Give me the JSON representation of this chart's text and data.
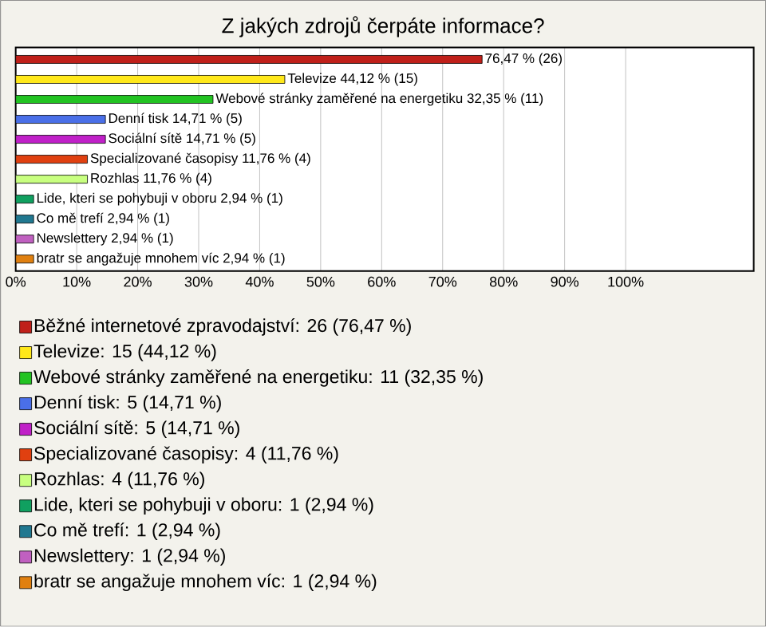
{
  "chart_data": {
    "type": "bar",
    "orientation": "horizontal",
    "title": "Z jakých zdrojů čerpáte informace?",
    "categories": [
      null,
      null,
      null,
      null,
      null,
      null,
      null,
      null,
      null,
      null,
      null
    ],
    "series": [
      {
        "name": "Běžné internetové zpravodajství: 26 (76,47 %)",
        "color": "#c0201a",
        "values": [
          76.47,
          null,
          null,
          null,
          null,
          null,
          null,
          null,
          null,
          null,
          null
        ],
        "value_labels": [
          "76,47 % (26)",
          null,
          null,
          null,
          null,
          null,
          null,
          null,
          null,
          null,
          null
        ]
      },
      {
        "name": "Televize: 15 (44,12 %)",
        "color": "#ffe81a",
        "values": [
          null,
          44.12,
          null,
          null,
          null,
          null,
          null,
          null,
          null,
          null,
          null
        ],
        "value_labels": [
          null,
          "Televize 44,12 % (15)",
          null,
          null,
          null,
          null,
          null,
          null,
          null,
          null,
          null
        ]
      },
      {
        "name": "Webové stránky zaměřené na energetiku: 11 (32,35 %)",
        "color": "#22c322",
        "values": [
          null,
          null,
          32.35,
          null,
          null,
          null,
          null,
          null,
          null,
          null,
          null
        ],
        "value_labels": [
          null,
          null,
          "Webové stránky zaměřené na energetiku 32,35 % (11)",
          null,
          null,
          null,
          null,
          null,
          null,
          null,
          null
        ]
      },
      {
        "name": "Denní tisk: 5 (14,71 %)",
        "color": "#4a6fe8",
        "values": [
          null,
          null,
          null,
          14.71,
          null,
          null,
          null,
          null,
          null,
          null,
          null
        ],
        "value_labels": [
          null,
          null,
          null,
          "Denní tisk 14,71 % (5)",
          null,
          null,
          null,
          null,
          null,
          null,
          null
        ]
      },
      {
        "name": "Sociální sítě: 5 (14,71 %)",
        "color": "#c020c8",
        "values": [
          null,
          null,
          null,
          null,
          14.71,
          null,
          null,
          null,
          null,
          null,
          null
        ],
        "value_labels": [
          null,
          null,
          null,
          null,
          "Sociální sítě 14,71 % (5)",
          null,
          null,
          null,
          null,
          null,
          null
        ]
      },
      {
        "name": "Specializované časopisy: 4 (11,76 %)",
        "color": "#e04010",
        "values": [
          null,
          null,
          null,
          null,
          null,
          11.76,
          null,
          null,
          null,
          null,
          null
        ],
        "value_labels": [
          null,
          null,
          null,
          null,
          null,
          "Specializované časopisy 11,76 % (4)",
          null,
          null,
          null,
          null,
          null
        ]
      },
      {
        "name": "Rozhlas: 4 (11,76 %)",
        "color": "#c8ff80",
        "values": [
          null,
          null,
          null,
          null,
          null,
          null,
          11.76,
          null,
          null,
          null,
          null
        ],
        "value_labels": [
          null,
          null,
          null,
          null,
          null,
          null,
          "Rozhlas 11,76 % (4)",
          null,
          null,
          null,
          null
        ]
      },
      {
        "name": "Lide, kteri se pohybuji v oboru: 1 (2,94 %)",
        "color": "#10a060",
        "values": [
          null,
          null,
          null,
          null,
          null,
          null,
          null,
          2.94,
          null,
          null,
          null
        ],
        "value_labels": [
          null,
          null,
          null,
          null,
          null,
          null,
          null,
          "Lide, kteri se pohybuji v oboru 2,94 % (1)",
          null,
          null,
          null
        ]
      },
      {
        "name": "Co mě trefí: 1 (2,94 %)",
        "color": "#207890",
        "values": [
          null,
          null,
          null,
          null,
          null,
          null,
          null,
          null,
          2.94,
          null,
          null
        ],
        "value_labels": [
          null,
          null,
          null,
          null,
          null,
          null,
          null,
          null,
          "Co mě trefí 2,94 % (1)",
          null,
          null
        ]
      },
      {
        "name": "Newslettery: 1 (2,94 %)",
        "color": "#c060c0",
        "values": [
          null,
          null,
          null,
          null,
          null,
          null,
          null,
          null,
          null,
          2.94,
          null
        ],
        "value_labels": [
          null,
          null,
          null,
          null,
          null,
          null,
          null,
          null,
          null,
          "Newslettery 2,94 % (1)",
          null
        ]
      },
      {
        "name": "bratr se angažuje mnohem víc: 1 (2,94 %)",
        "color": "#e08010",
        "values": [
          null,
          null,
          null,
          null,
          null,
          null,
          null,
          null,
          null,
          null,
          2.94
        ],
        "value_labels": [
          null,
          null,
          null,
          null,
          null,
          null,
          null,
          null,
          null,
          null,
          "bratr se angažuje mnohem víc 2,94 % (1)"
        ]
      }
    ],
    "xlim": [
      0,
      121
    ],
    "xticks": [
      {
        "value": 0,
        "label": "0%"
      },
      {
        "value": 10,
        "label": "10%"
      },
      {
        "value": 20,
        "label": "20%"
      },
      {
        "value": 30,
        "label": "30%"
      },
      {
        "value": 40,
        "label": "40%"
      },
      {
        "value": 50,
        "label": "50%"
      },
      {
        "value": 60,
        "label": "60%"
      },
      {
        "value": 70,
        "label": "70%"
      },
      {
        "value": 80,
        "label": "80%"
      },
      {
        "value": 90,
        "label": "90%"
      },
      {
        "value": 100,
        "label": "100%"
      }
    ],
    "grid": "x",
    "legend": "bottom"
  }
}
